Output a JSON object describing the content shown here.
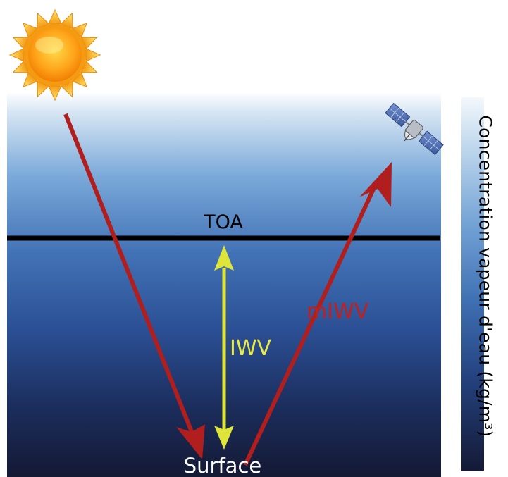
{
  "labels": {
    "toa": "TOA",
    "surface": "Surface",
    "iwv": "IWV",
    "miwv": "mIWV"
  },
  "colorbar": {
    "label": "Concentration vapeur d'eau (kg/m³)"
  },
  "colors": {
    "gradient_top": "#f4f8fc",
    "gradient_mid_light": "#6fa0d4",
    "gradient_mid": "#3e6fb2",
    "gradient_low": "#1d3a72",
    "gradient_bottom": "#141a36",
    "toa_line": "#000000",
    "sun_path_arrow": "#b01e1e",
    "iwv_arrow": "#dfe43a",
    "iwv_text": "#e8ea46",
    "miwv_text": "#c0201e",
    "surface_text": "#ffffff"
  },
  "icons": {
    "sun": "sun-icon",
    "satellite": "satellite-icon"
  }
}
